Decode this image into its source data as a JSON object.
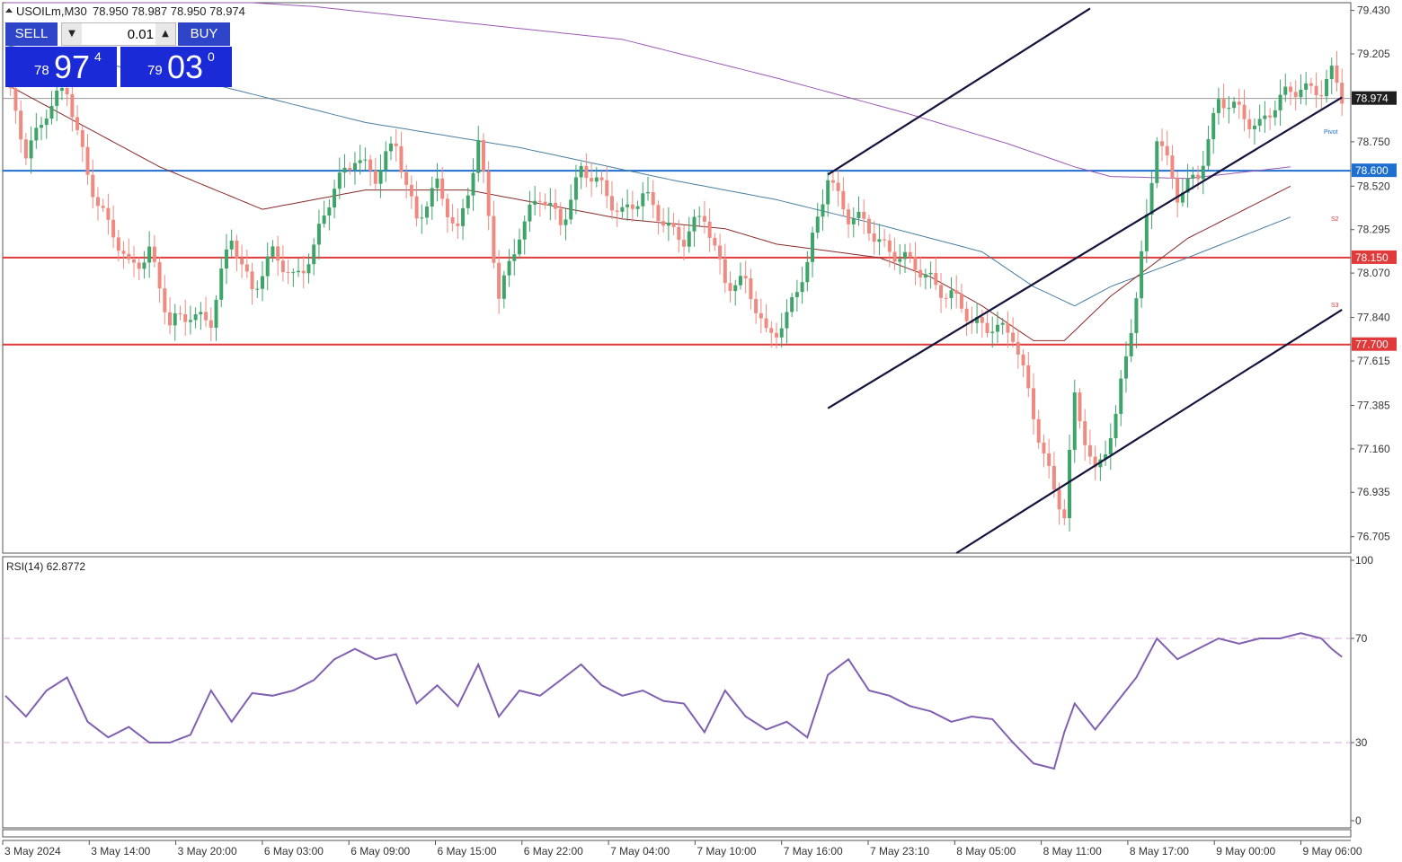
{
  "header": {
    "symbol_timeframe": "USOILm,M30",
    "ohlc": "78.950 78.987 78.950 78.974"
  },
  "trade_panel": {
    "sell_label": "SELL",
    "buy_label": "BUY",
    "lot_value": "0.01",
    "sell_price": {
      "small": "78",
      "big": "97",
      "sup": "4"
    },
    "buy_price": {
      "small": "79",
      "big": "03",
      "sup": "0"
    },
    "colors": {
      "button": "#2f45c9",
      "price_box": "#1a2ad6"
    }
  },
  "chart_data": [
    {
      "type": "candlestick",
      "ylim": [
        76.62,
        79.47
      ],
      "y_ticks": [
        "79.430",
        "79.205",
        "78.750",
        "78.520",
        "78.295",
        "78.070",
        "77.840",
        "77.615",
        "77.385",
        "77.160",
        "76.935",
        "76.705"
      ],
      "x_ticks": [
        "3 May 2024",
        "3 May 14:00",
        "3 May 20:00",
        "6 May 03:00",
        "6 May 09:00",
        "6 May 15:00",
        "6 May 22:00",
        "7 May 04:00",
        "7 May 10:00",
        "7 May 16:00",
        "7 May 23:10",
        "8 May 05:00",
        "8 May 11:00",
        "8 May 17:00",
        "9 May 00:00",
        "9 May 06:00"
      ],
      "current_price": {
        "value": 78.974,
        "label": "78.974"
      },
      "levels": [
        {
          "value": 78.6,
          "label": "78.600",
          "color": "#1e6fd0",
          "text_mark": "Pivot"
        },
        {
          "value": 78.15,
          "label": "78.150",
          "color": "#e03a3a",
          "text_mark": "S2"
        },
        {
          "value": 77.7,
          "label": "77.700",
          "color": "#e03a3a",
          "text_mark": "S3"
        }
      ],
      "candle_colors": {
        "up": "#3fa46a",
        "down": "#ef8a80"
      },
      "anchors": [
        [
          0,
          79.05
        ],
        [
          4,
          78.7
        ],
        [
          8,
          78.92
        ],
        [
          12,
          79.0
        ],
        [
          16,
          78.6
        ],
        [
          20,
          78.3
        ],
        [
          24,
          78.1
        ],
        [
          28,
          78.2
        ],
        [
          32,
          77.78
        ],
        [
          36,
          77.88
        ],
        [
          40,
          77.82
        ],
        [
          44,
          78.25
        ],
        [
          48,
          78.0
        ],
        [
          52,
          78.15
        ],
        [
          56,
          78.05
        ],
        [
          60,
          78.2
        ],
        [
          64,
          78.5
        ],
        [
          68,
          78.7
        ],
        [
          72,
          78.55
        ],
        [
          76,
          78.75
        ],
        [
          80,
          78.35
        ],
        [
          84,
          78.5
        ],
        [
          88,
          78.3
        ],
        [
          92,
          78.73
        ],
        [
          96,
          77.95
        ],
        [
          100,
          78.3
        ],
        [
          104,
          78.45
        ],
        [
          108,
          78.35
        ],
        [
          112,
          78.6
        ],
        [
          116,
          78.5
        ],
        [
          120,
          78.4
        ],
        [
          124,
          78.45
        ],
        [
          128,
          78.35
        ],
        [
          132,
          78.25
        ],
        [
          136,
          78.35
        ],
        [
          140,
          78.05
        ],
        [
          144,
          78.0
        ],
        [
          148,
          77.75
        ],
        [
          152,
          77.85
        ],
        [
          156,
          78.1
        ],
        [
          160,
          78.6
        ],
        [
          164,
          78.35
        ],
        [
          168,
          78.3
        ],
        [
          172,
          78.2
        ],
        [
          176,
          78.1
        ],
        [
          180,
          78.05
        ],
        [
          184,
          77.95
        ],
        [
          188,
          77.8
        ],
        [
          192,
          77.82
        ],
        [
          196,
          77.73
        ],
        [
          200,
          77.35
        ],
        [
          204,
          76.95
        ],
        [
          206,
          76.8
        ],
        [
          208,
          77.4
        ],
        [
          212,
          77.05
        ],
        [
          216,
          77.3
        ],
        [
          220,
          77.95
        ],
        [
          224,
          78.8
        ],
        [
          228,
          78.45
        ],
        [
          232,
          78.6
        ],
        [
          236,
          78.95
        ],
        [
          240,
          78.9
        ],
        [
          244,
          78.85
        ],
        [
          248,
          78.95
        ],
        [
          252,
          79.05
        ],
        [
          256,
          79.02
        ],
        [
          258,
          79.08
        ],
        [
          260,
          78.97
        ]
      ],
      "moving_averages": [
        {
          "color": "#9b59b6",
          "points": [
            [
              0,
              79.55
            ],
            [
              60,
              79.45
            ],
            [
              120,
              79.28
            ],
            [
              150,
              79.08
            ],
            [
              175,
              78.9
            ],
            [
              195,
              78.74
            ],
            [
              208,
              78.62
            ],
            [
              215,
              78.57
            ],
            [
              230,
              78.56
            ],
            [
              250,
              78.62
            ]
          ]
        },
        {
          "color": "#4a7fa0",
          "points": [
            [
              0,
              79.25
            ],
            [
              40,
              79.05
            ],
            [
              70,
              78.85
            ],
            [
              100,
              78.72
            ],
            [
              130,
              78.55
            ],
            [
              150,
              78.45
            ],
            [
              170,
              78.32
            ],
            [
              190,
              78.18
            ],
            [
              200,
              78.0
            ],
            [
              208,
              77.9
            ],
            [
              215,
              78.0
            ],
            [
              230,
              78.15
            ],
            [
              250,
              78.36
            ]
          ]
        },
        {
          "color": "#8b2a2a",
          "points": [
            [
              0,
              79.05
            ],
            [
              30,
              78.62
            ],
            [
              50,
              78.4
            ],
            [
              70,
              78.5
            ],
            [
              90,
              78.5
            ],
            [
              120,
              78.35
            ],
            [
              140,
              78.3
            ],
            [
              150,
              78.22
            ],
            [
              170,
              78.15
            ],
            [
              180,
              78.05
            ],
            [
              190,
              77.9
            ],
            [
              200,
              77.72
            ],
            [
              206,
              77.72
            ],
            [
              215,
              77.95
            ],
            [
              230,
              78.25
            ],
            [
              250,
              78.52
            ]
          ]
        }
      ],
      "channel_lines": [
        {
          "from": [
            160,
            78.58
          ],
          "to": [
            211,
            79.44
          ]
        },
        {
          "from": [
            160,
            77.37
          ],
          "to": [
            260,
            78.98
          ]
        },
        {
          "from": [
            185,
            76.62
          ],
          "to": [
            260,
            77.88
          ]
        }
      ]
    },
    {
      "type": "line",
      "title": "RSI(14) 62.8772",
      "ylim": [
        0,
        100
      ],
      "y_ticks": [
        "100",
        "70",
        "30",
        "0"
      ],
      "reference_lines": [
        70,
        30
      ],
      "color": "#8060b0",
      "points": [
        [
          0,
          48
        ],
        [
          4,
          40
        ],
        [
          8,
          50
        ],
        [
          12,
          55
        ],
        [
          16,
          38
        ],
        [
          20,
          32
        ],
        [
          24,
          36
        ],
        [
          28,
          30
        ],
        [
          32,
          30
        ],
        [
          36,
          33
        ],
        [
          40,
          50
        ],
        [
          44,
          38
        ],
        [
          48,
          49
        ],
        [
          52,
          48
        ],
        [
          56,
          50
        ],
        [
          60,
          54
        ],
        [
          64,
          62
        ],
        [
          68,
          66
        ],
        [
          72,
          62
        ],
        [
          76,
          64
        ],
        [
          80,
          45
        ],
        [
          84,
          52
        ],
        [
          88,
          44
        ],
        [
          92,
          60
        ],
        [
          96,
          40
        ],
        [
          100,
          50
        ],
        [
          104,
          48
        ],
        [
          108,
          54
        ],
        [
          112,
          60
        ],
        [
          116,
          52
        ],
        [
          120,
          48
        ],
        [
          124,
          50
        ],
        [
          128,
          46
        ],
        [
          132,
          45
        ],
        [
          136,
          34
        ],
        [
          140,
          50
        ],
        [
          144,
          40
        ],
        [
          148,
          35
        ],
        [
          152,
          38
        ],
        [
          156,
          32
        ],
        [
          160,
          56
        ],
        [
          164,
          62
        ],
        [
          168,
          50
        ],
        [
          172,
          48
        ],
        [
          176,
          44
        ],
        [
          180,
          42
        ],
        [
          184,
          38
        ],
        [
          188,
          40
        ],
        [
          192,
          39
        ],
        [
          196,
          30
        ],
        [
          200,
          22
        ],
        [
          204,
          20
        ],
        [
          206,
          34
        ],
        [
          208,
          45
        ],
        [
          212,
          35
        ],
        [
          216,
          45
        ],
        [
          220,
          55
        ],
        [
          224,
          70
        ],
        [
          228,
          62
        ],
        [
          232,
          66
        ],
        [
          236,
          70
        ],
        [
          240,
          68
        ],
        [
          244,
          70
        ],
        [
          248,
          70
        ],
        [
          252,
          72
        ],
        [
          256,
          70
        ],
        [
          258,
          66
        ],
        [
          260,
          62.88
        ]
      ]
    }
  ]
}
